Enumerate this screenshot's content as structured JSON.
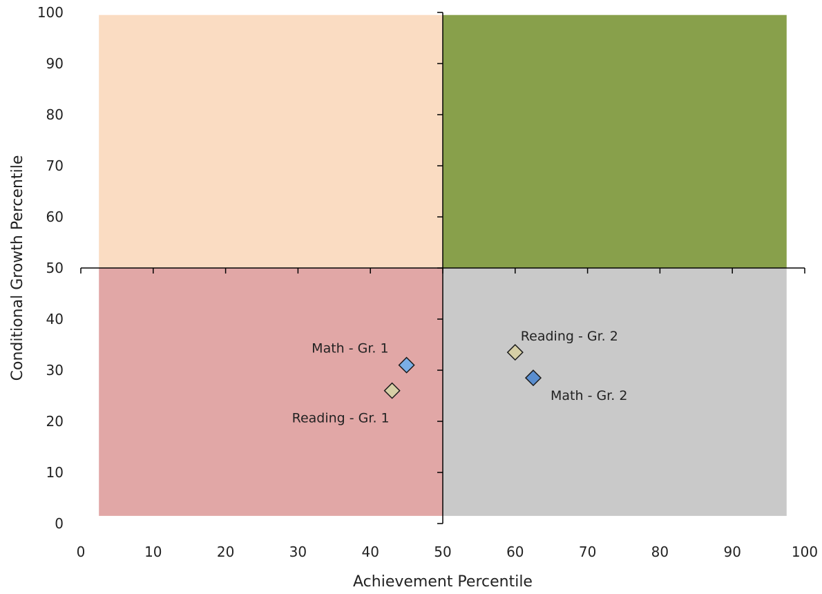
{
  "chart_data": {
    "type": "scatter",
    "title": "",
    "xlabel": "Achievement Percentile",
    "ylabel": "Conditional Growth Percentile",
    "xlim": [
      0,
      100
    ],
    "ylim": [
      0,
      100
    ],
    "x_ticks": [
      0,
      10,
      20,
      30,
      40,
      50,
      60,
      70,
      80,
      90,
      100
    ],
    "y_ticks": [
      0,
      10,
      20,
      30,
      40,
      50,
      60,
      70,
      80,
      90,
      100
    ],
    "axes_cross_at": {
      "x": 50,
      "y": 50
    },
    "grid": false,
    "quadrants": [
      {
        "id": "upper-left",
        "x_range": [
          2.5,
          50
        ],
        "y_range": [
          50,
          99.5
        ],
        "color": "#FADCC2"
      },
      {
        "id": "upper-right",
        "x_range": [
          50,
          97.5
        ],
        "y_range": [
          50,
          99.5
        ],
        "color": "#88A04B"
      },
      {
        "id": "lower-left",
        "x_range": [
          2.5,
          50
        ],
        "y_range": [
          1.5,
          50
        ],
        "color": "#E1A7A6"
      },
      {
        "id": "lower-right",
        "x_range": [
          50,
          97.5
        ],
        "y_range": [
          1.5,
          50
        ],
        "color": "#C9C9C9"
      }
    ],
    "points": [
      {
        "label": "Math - Gr. 1",
        "x": 45,
        "y": 31,
        "color": "#7AAEE6",
        "label_position": "upper-left"
      },
      {
        "label": "Reading - Gr. 1",
        "x": 43,
        "y": 26,
        "color": "#D6CFA6",
        "label_position": "lower-left"
      },
      {
        "label": "Reading - Gr. 2",
        "x": 60,
        "y": 33.5,
        "color": "#D6CFA6",
        "label_position": "upper-right"
      },
      {
        "label": "Math - Gr. 2",
        "x": 62.5,
        "y": 28.5,
        "color": "#5A8ECF",
        "label_position": "lower-right"
      }
    ]
  }
}
